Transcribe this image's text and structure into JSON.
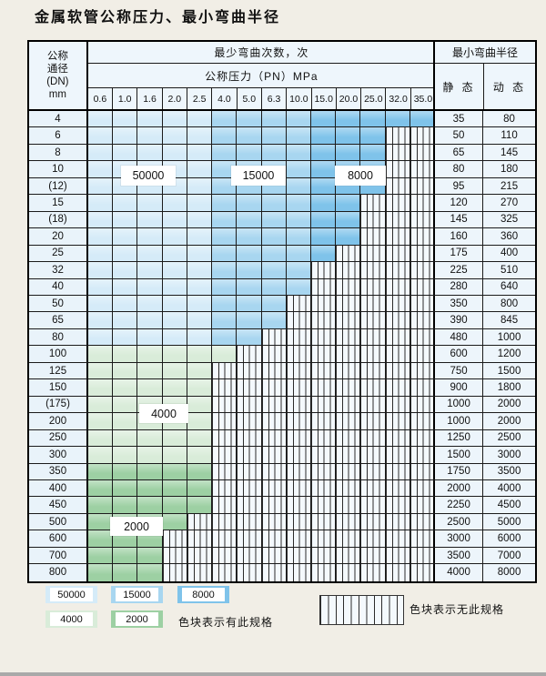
{
  "title": "金属软管公称压力、最小弯曲半径",
  "palette": {
    "cycles_50000": "#d5ebf8",
    "cycles_15000": "#a8d6f0",
    "cycles_8000": "#7fc3ea",
    "cycles_4000": "#d9ecd9",
    "cycles_2000": "#9dd0a3",
    "hatch_bg": "#f4f9fd",
    "grid_line": "#1b1b1b"
  },
  "table": {
    "header": {
      "dn_lines": [
        "公称",
        "通径",
        "(DN)",
        "mm"
      ],
      "cycles_label": "最少弯曲次数，次",
      "pressure_label": "公称压力（PN）MPa",
      "pressure_columns": [
        "0.6",
        "1.0",
        "1.6",
        "2.0",
        "2.5",
        "4.0",
        "5.0",
        "6.3",
        "10.0",
        "15.0",
        "20.0",
        "25.0",
        "32.0",
        "35.0"
      ],
      "radius_label": "最小弯曲半径",
      "static_label": "静 态",
      "dynamic_label": "动 态"
    },
    "zone_bands": {
      "blue": [
        {
          "upto": 5,
          "color_key": "cycles_50000"
        },
        {
          "upto": 9,
          "color_key": "cycles_15000"
        },
        {
          "upto": 14,
          "color_key": "cycles_8000"
        }
      ],
      "green_4000": "cycles_4000",
      "green_2000": "cycles_2000"
    },
    "rows": [
      {
        "dn": "4",
        "colored_cols": 14,
        "zone": "blue",
        "static": "35",
        "dynamic": "80"
      },
      {
        "dn": "6",
        "colored_cols": 12,
        "zone": "blue",
        "static": "50",
        "dynamic": "110"
      },
      {
        "dn": "8",
        "colored_cols": 12,
        "zone": "blue",
        "static": "65",
        "dynamic": "145"
      },
      {
        "dn": "10",
        "colored_cols": 12,
        "zone": "blue",
        "static": "80",
        "dynamic": "180"
      },
      {
        "dn": "(12)",
        "colored_cols": 12,
        "zone": "blue",
        "static": "95",
        "dynamic": "215"
      },
      {
        "dn": "15",
        "colored_cols": 11,
        "zone": "blue",
        "static": "120",
        "dynamic": "270"
      },
      {
        "dn": "(18)",
        "colored_cols": 11,
        "zone": "blue",
        "static": "145",
        "dynamic": "325"
      },
      {
        "dn": "20",
        "colored_cols": 11,
        "zone": "blue",
        "static": "160",
        "dynamic": "360"
      },
      {
        "dn": "25",
        "colored_cols": 10,
        "zone": "blue",
        "static": "175",
        "dynamic": "400"
      },
      {
        "dn": "32",
        "colored_cols": 9,
        "zone": "blue",
        "static": "225",
        "dynamic": "510"
      },
      {
        "dn": "40",
        "colored_cols": 9,
        "zone": "blue",
        "static": "280",
        "dynamic": "640"
      },
      {
        "dn": "50",
        "colored_cols": 8,
        "zone": "blue",
        "static": "350",
        "dynamic": "800"
      },
      {
        "dn": "65",
        "colored_cols": 8,
        "zone": "blue",
        "static": "390",
        "dynamic": "845"
      },
      {
        "dn": "80",
        "colored_cols": 7,
        "zone": "blue",
        "static": "480",
        "dynamic": "1000"
      },
      {
        "dn": "100",
        "colored_cols": 6,
        "zone": "green_4000",
        "static": "600",
        "dynamic": "1200"
      },
      {
        "dn": "125",
        "colored_cols": 5,
        "zone": "green_4000",
        "static": "750",
        "dynamic": "1500"
      },
      {
        "dn": "150",
        "colored_cols": 5,
        "zone": "green_4000",
        "static": "900",
        "dynamic": "1800"
      },
      {
        "dn": "(175)",
        "colored_cols": 5,
        "zone": "green_4000",
        "static": "1000",
        "dynamic": "2000"
      },
      {
        "dn": "200",
        "colored_cols": 5,
        "zone": "green_4000",
        "static": "1000",
        "dynamic": "2000"
      },
      {
        "dn": "250",
        "colored_cols": 5,
        "zone": "green_4000",
        "static": "1250",
        "dynamic": "2500"
      },
      {
        "dn": "300",
        "colored_cols": 5,
        "zone": "green_4000",
        "static": "1500",
        "dynamic": "3000"
      },
      {
        "dn": "350",
        "colored_cols": 5,
        "zone": "green_2000",
        "static": "1750",
        "dynamic": "3500"
      },
      {
        "dn": "400",
        "colored_cols": 5,
        "zone": "green_2000",
        "static": "2000",
        "dynamic": "4000"
      },
      {
        "dn": "450",
        "colored_cols": 5,
        "zone": "green_2000",
        "static": "2250",
        "dynamic": "4500"
      },
      {
        "dn": "500",
        "colored_cols": 4,
        "zone": "green_2000",
        "static": "2500",
        "dynamic": "5000"
      },
      {
        "dn": "600",
        "colored_cols": 3,
        "zone": "green_2000",
        "static": "3000",
        "dynamic": "6000"
      },
      {
        "dn": "700",
        "colored_cols": 3,
        "zone": "green_2000",
        "static": "3500",
        "dynamic": "7000"
      },
      {
        "dn": "800",
        "colored_cols": 3,
        "zone": "green_2000",
        "static": "4000",
        "dynamic": "8000"
      }
    ]
  },
  "overlays": {
    "o50000": "50000",
    "o15000": "15000",
    "o8000": "8000",
    "o4000": "4000",
    "o2000": "2000"
  },
  "legend": {
    "items": [
      {
        "label": "50000",
        "color_key": "cycles_50000"
      },
      {
        "label": "15000",
        "color_key": "cycles_15000"
      },
      {
        "label": "8000",
        "color_key": "cycles_8000"
      },
      {
        "label": "4000",
        "color_key": "cycles_4000"
      },
      {
        "label": "2000",
        "color_key": "cycles_2000"
      }
    ],
    "has_spec_text": "色块表示有此规格",
    "no_spec_text": "色块表示无此规格"
  }
}
